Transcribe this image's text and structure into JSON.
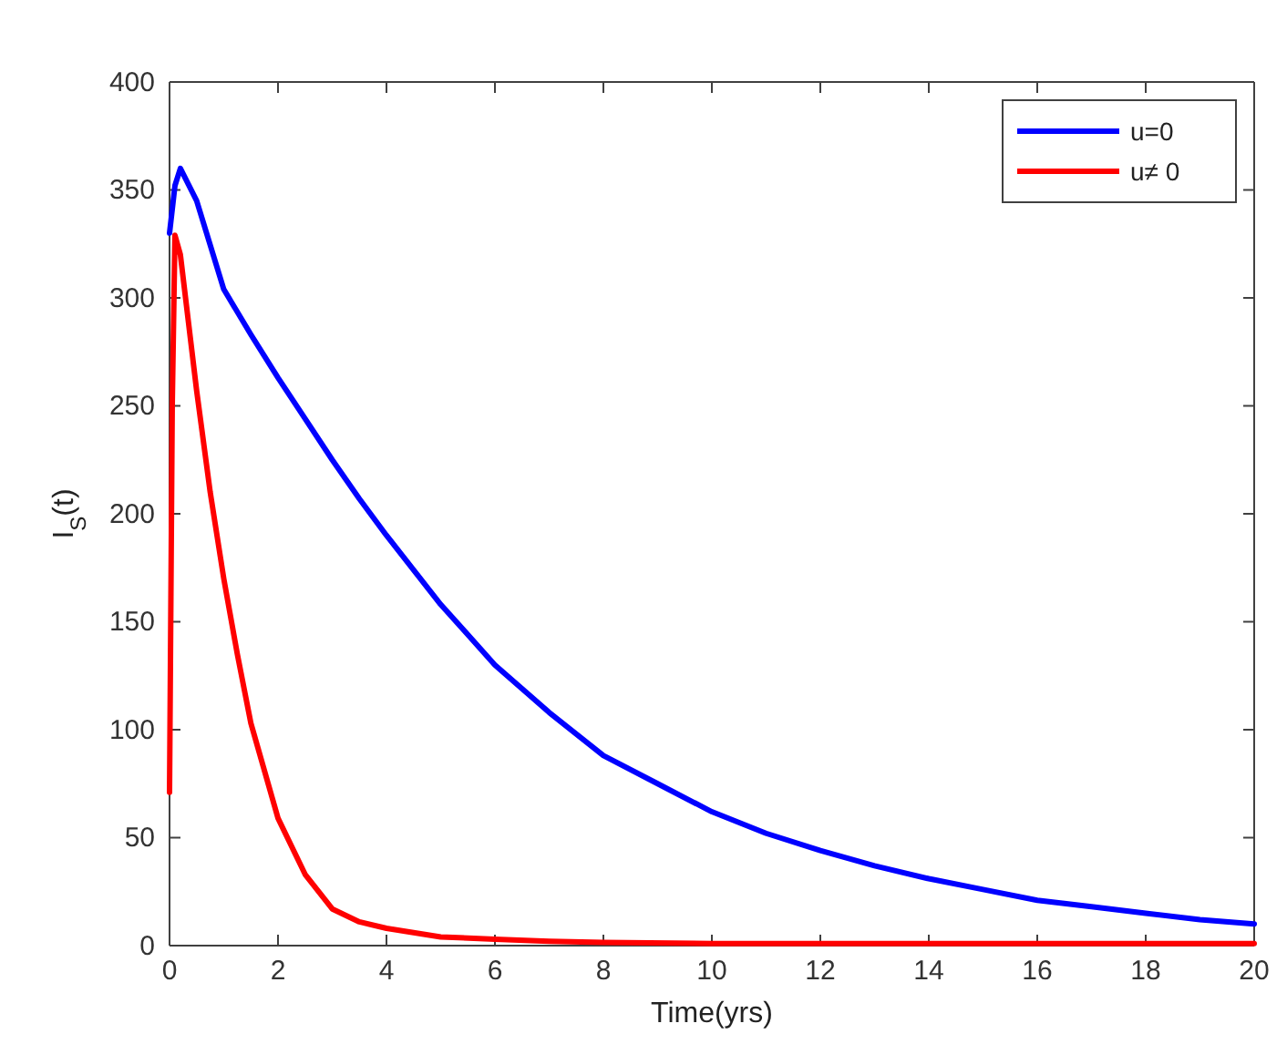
{
  "chart_data": {
    "type": "line",
    "xlabel": "Time(yrs)",
    "ylabel": "I$_{S}$(t)",
    "xlim": [
      0,
      20
    ],
    "ylim": [
      0,
      400
    ],
    "xticks": [
      0,
      2,
      4,
      6,
      8,
      10,
      12,
      14,
      16,
      18,
      20
    ],
    "yticks": [
      0,
      50,
      100,
      150,
      200,
      250,
      300,
      350,
      400
    ],
    "grid": false,
    "legend": "top right",
    "line_style": "solid",
    "marker": "none",
    "series": [
      {
        "name": "u=0",
        "color": "#0000ff",
        "x": [
          0,
          0.1,
          0.2,
          0.5,
          1,
          1.5,
          2,
          2.5,
          3,
          3.5,
          4,
          5,
          6,
          7,
          8,
          9,
          10,
          11,
          12,
          13,
          14,
          15,
          16,
          17,
          18,
          19,
          20
        ],
        "values": [
          330,
          352,
          360,
          345,
          304,
          283,
          263,
          244,
          225,
          207,
          190,
          158,
          130,
          108,
          88,
          75,
          62,
          52,
          44,
          37,
          31,
          26,
          21,
          18,
          15,
          12,
          10
        ]
      },
      {
        "name": "u≠ 0",
        "color": "#ff0000",
        "x": [
          0,
          0.05,
          0.1,
          0.2,
          0.5,
          0.75,
          1,
          1.25,
          1.5,
          2,
          2.5,
          3,
          3.5,
          4,
          5,
          6,
          7,
          8,
          10,
          12,
          14,
          16,
          18,
          20
        ],
        "values": [
          71,
          250,
          329,
          320,
          257,
          210,
          170,
          135,
          103,
          59,
          33,
          17,
          11,
          8,
          4,
          3,
          2,
          1.5,
          1,
          1,
          1,
          1,
          1,
          1
        ]
      }
    ]
  }
}
